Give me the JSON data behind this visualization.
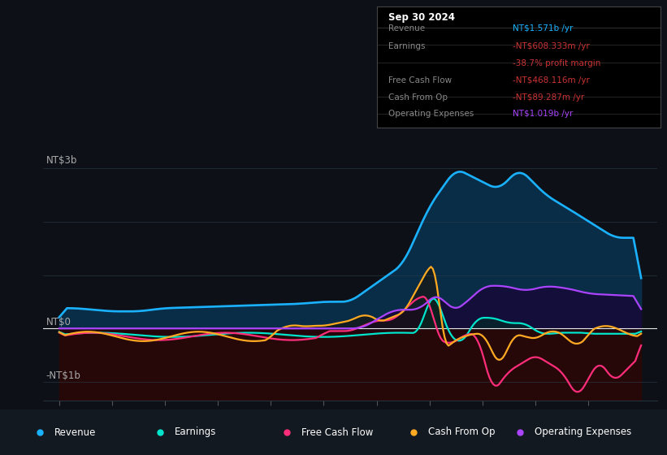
{
  "bg_color": "#0d1117",
  "plot_bg": "#0d1f2d",
  "neg_bg": "#2a0a0a",
  "title": "Sep 30 2024",
  "ylabel_top": "NT$3b",
  "ylabel_mid": "NT$0",
  "ylabel_bot": "-NT$1b",
  "ylim": [
    -1350000000.0,
    3600000000.0
  ],
  "xlim_start": 2013.7,
  "xlim_end": 2025.3,
  "xticks": [
    2014,
    2015,
    2016,
    2017,
    2018,
    2019,
    2020,
    2021,
    2022,
    2023,
    2024
  ],
  "colors": {
    "revenue": "#1ab2ff",
    "earnings": "#00e5cc",
    "free_cash_flow": "#ff2d7a",
    "cash_from_op": "#ffaa22",
    "operating_expenses": "#aa44ff"
  },
  "info_box": {
    "title": "Sep 30 2024",
    "rows": [
      {
        "label": "Revenue",
        "value": "NT$1.571b /yr",
        "value_color": "#1ab2ff",
        "label_color": "#888888"
      },
      {
        "label": "Earnings",
        "value": "-NT$608.333m /yr",
        "value_color": "#cc3333",
        "label_color": "#888888"
      },
      {
        "label": "",
        "value": "-38.7% profit margin",
        "value_color": "#cc3333",
        "label_color": "#888888"
      },
      {
        "label": "Free Cash Flow",
        "value": "-NT$468.116m /yr",
        "value_color": "#cc3333",
        "label_color": "#888888"
      },
      {
        "label": "Cash From Op",
        "value": "-NT$89.287m /yr",
        "value_color": "#cc3333",
        "label_color": "#888888"
      },
      {
        "label": "Operating Expenses",
        "value": "NT$1.019b /yr",
        "value_color": "#aa44ff",
        "label_color": "#888888"
      }
    ]
  },
  "legend": [
    {
      "label": "Revenue",
      "color": "#1ab2ff"
    },
    {
      "label": "Earnings",
      "color": "#00e5cc"
    },
    {
      "label": "Free Cash Flow",
      "color": "#ff2d7a"
    },
    {
      "label": "Cash From Op",
      "color": "#ffaa22"
    },
    {
      "label": "Operating Expenses",
      "color": "#aa44ff"
    }
  ]
}
